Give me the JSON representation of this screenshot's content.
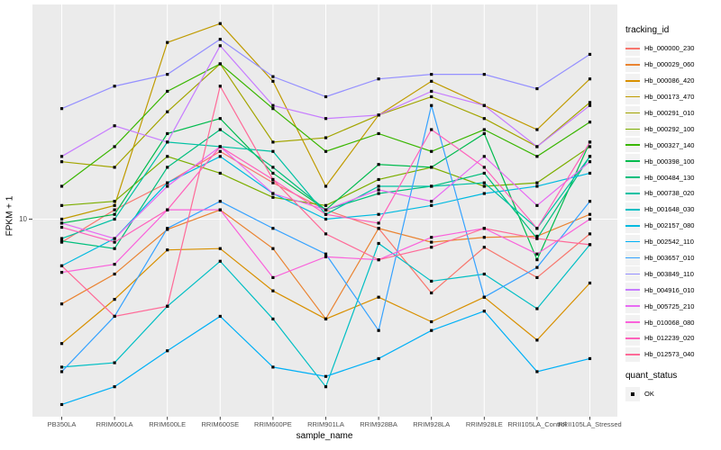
{
  "chart_data": {
    "type": "line",
    "title": "",
    "xlabel": "sample_name",
    "ylabel": "FPKM + 1",
    "yscale": "log10",
    "yticks": [
      10
    ],
    "ytick_label": "10",
    "ylim": [
      1.4,
      85
    ],
    "grid": true,
    "legend_position": "right",
    "point_marker": "black-square",
    "categories": [
      "PB350LA",
      "RRIM600LA",
      "RRIM600LE",
      "RRIM600SE",
      "RRIM600PE",
      "RRIM901LA",
      "RRIM928BA",
      "RRIM928LA",
      "RRIM928LE",
      "RRII105LA_Control",
      "RRII105LA_Stressed"
    ],
    "series": [
      {
        "name": "Hb_000000_230",
        "color": "#F8766D",
        "quant_status": "OK",
        "values": [
          7.9,
          11,
          14.5,
          20,
          14.5,
          11,
          9.1,
          4.7,
          7.5,
          5.5,
          8.6
        ]
      },
      {
        "name": "Hb_000029_060",
        "color": "#EA8331",
        "quant_status": "OK",
        "values": [
          4.2,
          5.7,
          9.0,
          11,
          7.4,
          3.6,
          9.1,
          7.9,
          8.3,
          8.4,
          10.5
        ]
      },
      {
        "name": "Hb_000086_420",
        "color": "#D89000",
        "quant_status": "OK",
        "values": [
          2.8,
          4.4,
          7.3,
          7.4,
          4.8,
          3.6,
          4.5,
          3.5,
          4.5,
          2.9,
          5.2
        ]
      },
      {
        "name": "Hb_000173_470",
        "color": "#C09B00",
        "quant_status": "OK",
        "values": [
          10,
          11.5,
          61,
          74,
          41,
          14,
          29,
          41,
          32,
          25,
          42
        ]
      },
      {
        "name": "Hb_000291_010",
        "color": "#A3A500",
        "quant_status": "OK",
        "values": [
          18,
          17,
          30,
          49,
          22,
          23,
          29,
          35,
          28,
          21,
          33
        ]
      },
      {
        "name": "Hb_000292_100",
        "color": "#7CAE00",
        "quant_status": "OK",
        "values": [
          11.5,
          12,
          19,
          16,
          12.5,
          11.5,
          15,
          17,
          14,
          14.5,
          21
        ]
      },
      {
        "name": "Hb_000327_140",
        "color": "#39B600",
        "quant_status": "OK",
        "values": [
          14,
          21,
          37,
          49,
          31,
          20,
          24,
          20,
          25,
          19,
          27
        ]
      },
      {
        "name": "Hb_000398_100",
        "color": "#00BB4E",
        "quant_status": "OK",
        "values": [
          9.6,
          10.5,
          24,
          28,
          16,
          11,
          17.5,
          17,
          24,
          6.6,
          22
        ]
      },
      {
        "name": "Hb_000484_130",
        "color": "#00BF7D",
        "quant_status": "OK",
        "values": [
          8.0,
          7.4,
          17,
          25,
          17,
          11,
          13,
          14,
          16,
          8.2,
          19
        ]
      },
      {
        "name": "Hb_000738_020",
        "color": "#00C1A3",
        "quant_status": "OK",
        "values": [
          8.2,
          10,
          22,
          21,
          20,
          10.5,
          14,
          14,
          14.5,
          9.1,
          19
        ]
      },
      {
        "name": "Hb_001648_030",
        "color": "#00BFC4",
        "quant_status": "OK",
        "values": [
          2.2,
          2.3,
          4.1,
          6.5,
          3.6,
          1.8,
          7.8,
          5.3,
          5.7,
          4.0,
          7.7
        ]
      },
      {
        "name": "Hb_002157_080",
        "color": "#00BAE0",
        "quant_status": "OK",
        "values": [
          6.2,
          8.2,
          14.5,
          19,
          13,
          10,
          10.5,
          11.5,
          13,
          14,
          16
        ]
      },
      {
        "name": "Hb_002542_110",
        "color": "#00B0F6",
        "quant_status": "OK",
        "values": [
          1.5,
          1.8,
          2.6,
          3.7,
          2.2,
          2.0,
          2.4,
          3.2,
          3.9,
          2.1,
          2.4
        ]
      },
      {
        "name": "Hb_003657_010",
        "color": "#35A2FF",
        "quant_status": "OK",
        "values": [
          2.1,
          3.7,
          9.1,
          12,
          9.1,
          7.0,
          3.2,
          32,
          4.5,
          6.1,
          12
        ]
      },
      {
        "name": "Hb_003849_110",
        "color": "#9590FF",
        "quant_status": "OK",
        "values": [
          31,
          39,
          44,
          63,
          43,
          35,
          42,
          44,
          44,
          38,
          54
        ]
      },
      {
        "name": "Hb_004916_010",
        "color": "#C77CFF",
        "quant_status": "OK",
        "values": [
          19,
          26,
          22,
          59,
          32,
          28,
          29,
          37,
          32,
          21,
          32
        ]
      },
      {
        "name": "Hb_005725_210",
        "color": "#E76BF3",
        "quant_status": "OK",
        "values": [
          9.6,
          8.2,
          14,
          21,
          13,
          11,
          13.5,
          12,
          19,
          11.5,
          18
        ]
      },
      {
        "name": "Hb_010068_080",
        "color": "#FA62DB",
        "quant_status": "OK",
        "values": [
          5.8,
          6.3,
          11,
          11,
          5.5,
          6.8,
          6.6,
          8.3,
          9.1,
          7.0,
          10
        ]
      },
      {
        "name": "Hb_012239_020",
        "color": "#FF62BC",
        "quant_status": "OK",
        "values": [
          9.2,
          7.9,
          11,
          21,
          15,
          10.5,
          9.6,
          25,
          17,
          9.1,
          22
        ]
      },
      {
        "name": "Hb_012573_040",
        "color": "#FF6A98",
        "quant_status": "OK",
        "values": [
          6.2,
          3.7,
          4.1,
          39,
          15,
          8.6,
          6.6,
          7.5,
          9.1,
          8.2,
          7.7
        ]
      }
    ]
  },
  "legend": {
    "tracking_title": "tracking_id",
    "quant_title": "quant_status",
    "quant_items": [
      {
        "label": "OK",
        "marker": "black-square"
      }
    ]
  },
  "colors": {
    "panel_bg": "#EBEBEB",
    "grid": "#FFFFFF",
    "tick_mark": "#333333",
    "tick_text": "#4D4D4D",
    "axis_text": "#000000",
    "legend_key_bg": "#F2F2F2",
    "marker": "#000000"
  }
}
